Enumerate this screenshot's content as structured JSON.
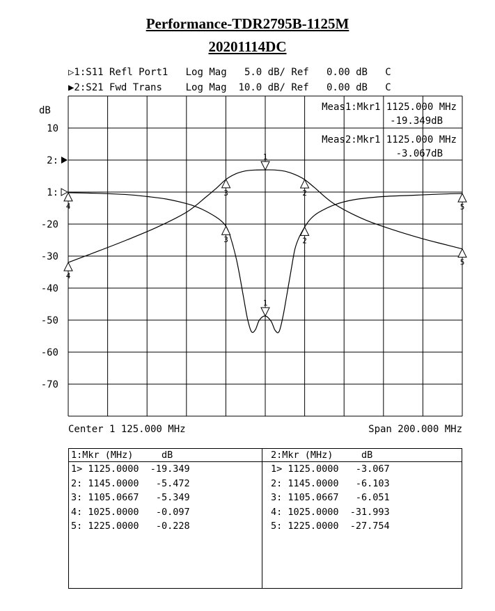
{
  "title": "Performance-TDR2795B-1125M",
  "subtitle": "20201114DC",
  "traces": [
    {
      "prefix": "▷1:",
      "param": "S11",
      "desc": "Refl Port1",
      "format": "Log Mag",
      "scale": "5.0 dB/",
      "ref": "Ref",
      "refval": "0.00 dB",
      "flag": "C"
    },
    {
      "prefix": "▶2:",
      "param": "S21",
      "desc": "Fwd Trans",
      "format": "Log Mag",
      "scale": "10.0 dB/",
      "ref": "Ref",
      "refval": "0.00 dB",
      "flag": "C"
    }
  ],
  "meas": [
    {
      "line1": "Meas1:Mkr1 1125.000 MHz",
      "line2": "-19.349dB"
    },
    {
      "line1": "Meas2:Mkr1 1125.000 MHz",
      "line2": "-3.067dB"
    }
  ],
  "colors": {
    "trace": "#000000",
    "grid": "#000000",
    "background": "#ffffff"
  },
  "chart_data": {
    "type": "line",
    "xlabel": "",
    "ylabel": "dB",
    "center_label": "Center 1 125.000 MHz",
    "span_label": "Span 200.000 MHz",
    "xlim": [
      1025,
      1225
    ],
    "ylim": [
      -80,
      20
    ],
    "grid": true,
    "y_tick_labels": [
      "10",
      "2:",
      "1:",
      "-20",
      "-30",
      "-40",
      "-50",
      "-60",
      "-70"
    ],
    "series": [
      {
        "name": "S11",
        "x": [
          1025,
          1040,
          1055,
          1065,
          1075,
          1085,
          1090,
          1095,
          1100,
          1103,
          1105.07,
          1107,
          1110,
          1112,
          1114,
          1116,
          1118,
          1120,
          1122,
          1125,
          1128,
          1130,
          1132,
          1134,
          1136,
          1138,
          1140,
          1142,
          1145,
          1148,
          1152,
          1160,
          1170,
          1185,
          1200,
          1215,
          1225
        ],
        "y": [
          -0.1,
          -0.2,
          -0.4,
          -0.7,
          -1.1,
          -1.8,
          -2.3,
          -3.0,
          -3.9,
          -4.6,
          -5.349,
          -6.7,
          -10.0,
          -13.0,
          -16.5,
          -19.8,
          -21.8,
          -21.5,
          -20.0,
          -19.349,
          -20.2,
          -21.6,
          -21.8,
          -19.4,
          -16.0,
          -12.4,
          -9.0,
          -7.2,
          -5.472,
          -4.2,
          -3.2,
          -2.0,
          -1.2,
          -0.7,
          -0.5,
          -0.3,
          -0.228
        ]
      },
      {
        "name": "S21",
        "x": [
          1025,
          1040,
          1055,
          1070,
          1085,
          1095,
          1100,
          1105.07,
          1110,
          1115,
          1120,
          1125,
          1130,
          1135,
          1140,
          1145,
          1150,
          1160,
          1175,
          1190,
          1205,
          1215,
          1225
        ],
        "y": [
          -31.993,
          -28.5,
          -24.9,
          -21.0,
          -16.3,
          -11.5,
          -8.9,
          -6.051,
          -4.3,
          -3.4,
          -3.1,
          -3.067,
          -3.1,
          -3.5,
          -4.5,
          -6.103,
          -8.6,
          -13.7,
          -18.5,
          -21.8,
          -24.6,
          -26.2,
          -27.754
        ]
      }
    ],
    "markers": [
      {
        "trace": "S11",
        "id": "1",
        "x": 1125.0,
        "y": -19.349
      },
      {
        "trace": "S11",
        "id": "2",
        "x": 1145.0,
        "y": -5.472
      },
      {
        "trace": "S11",
        "id": "3",
        "x": 1105.0667,
        "y": -5.349
      },
      {
        "trace": "S11",
        "id": "4",
        "x": 1025.0,
        "y": -0.097
      },
      {
        "trace": "S11",
        "id": "5",
        "x": 1225.0,
        "y": -0.228
      },
      {
        "trace": "S21",
        "id": "1",
        "x": 1125.0,
        "y": -3.067
      },
      {
        "trace": "S21",
        "id": "2",
        "x": 1145.0,
        "y": -6.103
      },
      {
        "trace": "S21",
        "id": "3",
        "x": 1105.0667,
        "y": -6.051
      },
      {
        "trace": "S21",
        "id": "4",
        "x": 1025.0,
        "y": -31.993
      },
      {
        "trace": "S21",
        "id": "5",
        "x": 1225.0,
        "y": -27.754
      }
    ]
  },
  "table": {
    "left": {
      "header": "1:Mkr (MHz)     dB",
      "rows": [
        "1> 1125.0000  -19.349",
        "2: 1145.0000   -5.472",
        "3: 1105.0667   -5.349",
        "4: 1025.0000   -0.097",
        "5: 1225.0000   -0.228"
      ]
    },
    "right": {
      "header": "2:Mkr (MHz)     dB",
      "rows": [
        "1> 1125.0000   -3.067",
        "2: 1145.0000   -6.103",
        "3: 1105.0667   -6.051",
        "4: 1025.0000  -31.993",
        "5: 1225.0000  -27.754"
      ]
    }
  }
}
